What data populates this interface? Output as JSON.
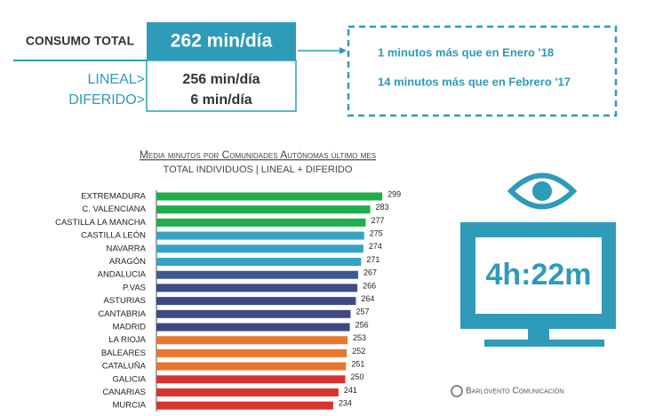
{
  "summary": {
    "total_label": "CONSUMO TOTAL",
    "total_value": "262 min/día",
    "rows": [
      {
        "label": "LINEAL>",
        "value": "256 min/día"
      },
      {
        "label": "DIFERIDO>",
        "value": "6 min/día"
      }
    ],
    "comparisons": [
      "1 minutos más que en Enero '18",
      "14 minutos más que en Febrero '17"
    ]
  },
  "chart_data": {
    "type": "hbar",
    "title": "Media minutos por Comunidades Autónomas último mes",
    "subtitle": "TOTAL INDIVIDUOS  | LINEAL + DIFERIDO",
    "categories": [
      "EXTREMADURA",
      "C. VALENCIANA",
      "CASTILLA LA MANCHA",
      "CASTILLA LEÓN",
      "NAVARRA",
      "ARAGÓN",
      "ANDALUCIA",
      "P.VAS",
      "ASTURIAS",
      "CANTABRIA",
      "MADRID",
      "LA RIOJA",
      "BALEARES",
      "CATALUÑA",
      "GALICIA",
      "CANARIAS",
      "MURCIA"
    ],
    "values": [
      299,
      283,
      277,
      275,
      274,
      271,
      267,
      266,
      264,
      257,
      256,
      253,
      252,
      251,
      250,
      241,
      234
    ],
    "colors": [
      "#1fae4b",
      "#1fae4b",
      "#1fae4b",
      "#36a3c3",
      "#36a3c3",
      "#36a3c3",
      "#3d5a96",
      "#3d4a85",
      "#3d4a85",
      "#3d4a85",
      "#3d4a85",
      "#e8772e",
      "#e8772e",
      "#e8772e",
      "#d8332f",
      "#d8332f",
      "#d8332f"
    ]
  },
  "monitor": {
    "time": "4h:22m"
  },
  "footer": {
    "brand": "Barlovento Comunicación"
  }
}
